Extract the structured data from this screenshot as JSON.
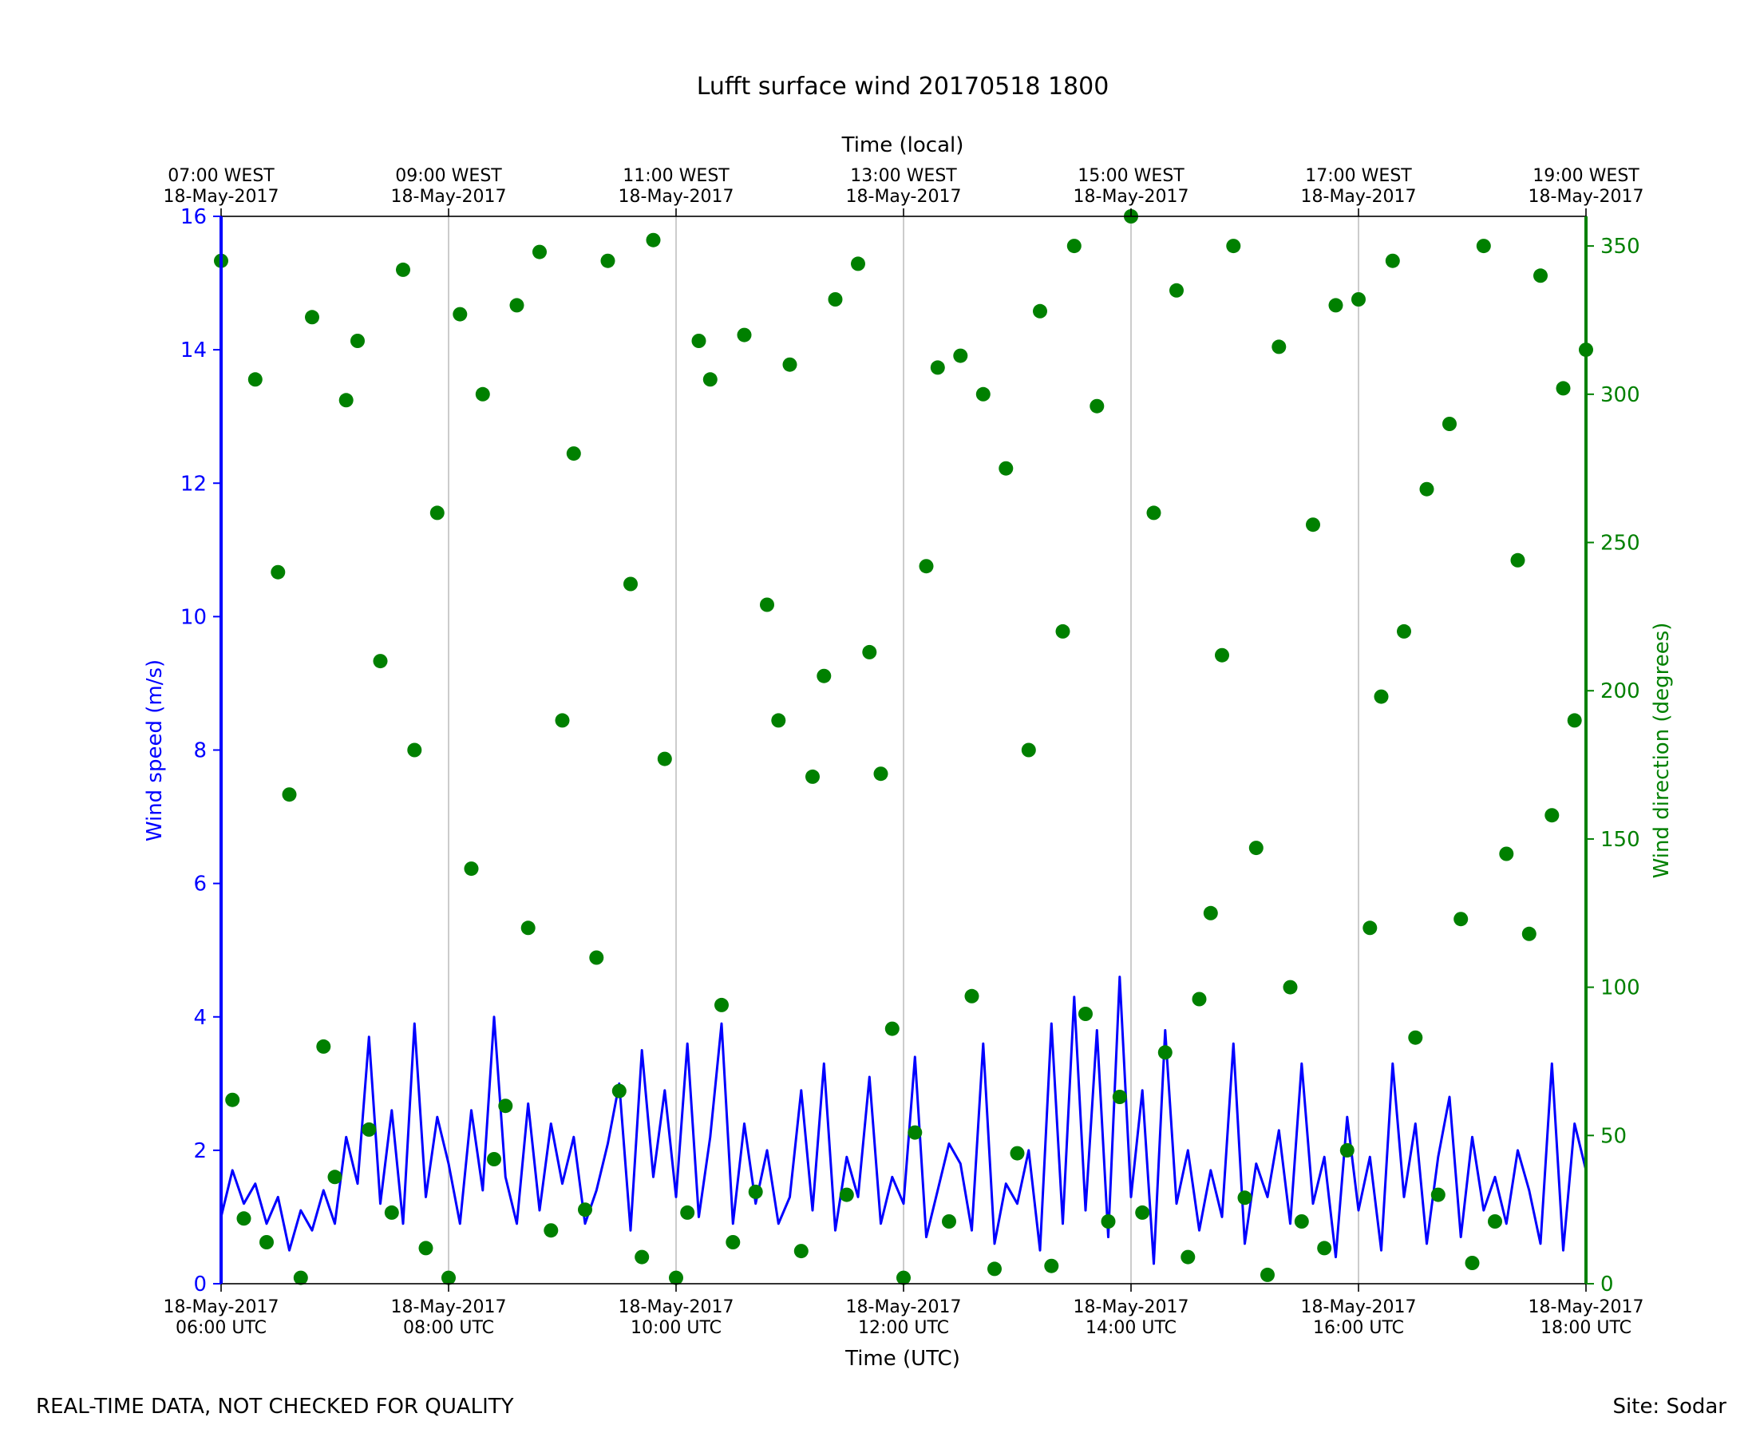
{
  "title": "Lufft surface wind 20170518 1800",
  "footer": {
    "left": "REAL-TIME DATA, NOT CHECKED FOR QUALITY",
    "right": "Site: Sodar"
  },
  "colors": {
    "speed": "#0000ff",
    "direction": "#008000",
    "grid": "#b0b0b0",
    "axis": "#000000"
  },
  "chart_data": {
    "type": "line",
    "x_axis_bottom": {
      "label": "Time (UTC)",
      "ticks": [
        {
          "line1": "18-May-2017",
          "line2": "06:00 UTC"
        },
        {
          "line1": "18-May-2017",
          "line2": "08:00 UTC"
        },
        {
          "line1": "18-May-2017",
          "line2": "10:00 UTC"
        },
        {
          "line1": "18-May-2017",
          "line2": "12:00 UTC"
        },
        {
          "line1": "18-May-2017",
          "line2": "14:00 UTC"
        },
        {
          "line1": "18-May-2017",
          "line2": "16:00 UTC"
        },
        {
          "line1": "18-May-2017",
          "line2": "18:00 UTC"
        }
      ]
    },
    "x_axis_top": {
      "label": "Time (local)",
      "ticks": [
        {
          "line1": "07:00 WEST",
          "line2": "18-May-2017"
        },
        {
          "line1": "09:00 WEST",
          "line2": "18-May-2017"
        },
        {
          "line1": "11:00 WEST",
          "line2": "18-May-2017"
        },
        {
          "line1": "13:00 WEST",
          "line2": "18-May-2017"
        },
        {
          "line1": "15:00 WEST",
          "line2": "18-May-2017"
        },
        {
          "line1": "17:00 WEST",
          "line2": "18-May-2017"
        },
        {
          "line1": "19:00 WEST",
          "line2": "18-May-2017"
        }
      ]
    },
    "x_range_hours_utc": [
      6,
      18
    ],
    "grid": "vertical lines at major time ticks",
    "y_left": {
      "label": "Wind speed (m/s)",
      "ylim": [
        0,
        16
      ],
      "ticks": [
        0,
        2,
        4,
        6,
        8,
        10,
        12,
        14,
        16
      ]
    },
    "y_right": {
      "label": "Wind direction (degrees)",
      "ylim": [
        0,
        360
      ],
      "ticks": [
        0,
        50,
        100,
        150,
        200,
        250,
        300,
        350
      ]
    },
    "series": [
      {
        "name": "Wind speed (m/s)",
        "axis": "left",
        "kind": "line",
        "x_hours_utc": [
          6.0,
          6.1,
          6.2,
          6.3,
          6.4,
          6.5,
          6.6,
          6.7,
          6.8,
          6.9,
          7.0,
          7.1,
          7.2,
          7.3,
          7.4,
          7.5,
          7.6,
          7.7,
          7.8,
          7.9,
          8.0,
          8.1,
          8.2,
          8.3,
          8.4,
          8.5,
          8.6,
          8.7,
          8.8,
          8.9,
          9.0,
          9.1,
          9.2,
          9.3,
          9.4,
          9.5,
          9.6,
          9.7,
          9.8,
          9.9,
          10.0,
          10.1,
          10.2,
          10.3,
          10.4,
          10.5,
          10.6,
          10.7,
          10.8,
          10.9,
          11.0,
          11.1,
          11.2,
          11.3,
          11.4,
          11.5,
          11.6,
          11.7,
          11.8,
          11.9,
          12.0,
          12.1,
          12.2,
          12.3,
          12.4,
          12.5,
          12.6,
          12.7,
          12.8,
          12.9,
          13.0,
          13.1,
          13.2,
          13.3,
          13.4,
          13.5,
          13.6,
          13.7,
          13.8,
          13.9,
          14.0,
          14.1,
          14.2,
          14.3,
          14.4,
          14.5,
          14.6,
          14.7,
          14.8,
          14.9,
          15.0,
          15.1,
          15.2,
          15.3,
          15.4,
          15.5,
          15.6,
          15.7,
          15.8,
          15.9,
          16.0,
          16.1,
          16.2,
          16.3,
          16.4,
          16.5,
          16.6,
          16.7,
          16.8,
          16.9,
          17.0,
          17.1,
          17.2,
          17.3,
          17.4,
          17.5,
          17.6,
          17.7,
          17.8,
          17.9,
          18.0
        ],
        "values": [
          1.0,
          1.7,
          1.2,
          1.5,
          0.9,
          1.3,
          0.5,
          1.1,
          0.8,
          1.4,
          0.9,
          2.2,
          1.5,
          3.7,
          1.2,
          2.6,
          0.9,
          3.9,
          1.3,
          2.5,
          1.8,
          0.9,
          2.6,
          1.4,
          4.0,
          1.6,
          0.9,
          2.7,
          1.1,
          2.4,
          1.5,
          2.2,
          0.9,
          1.4,
          2.1,
          3.0,
          0.8,
          3.5,
          1.6,
          2.9,
          1.3,
          3.6,
          1.0,
          2.2,
          3.9,
          0.9,
          2.4,
          1.2,
          2.0,
          0.9,
          1.3,
          2.9,
          1.1,
          3.3,
          0.8,
          1.9,
          1.3,
          3.1,
          0.9,
          1.6,
          1.2,
          3.4,
          0.7,
          1.4,
          2.1,
          1.8,
          0.8,
          3.6,
          0.6,
          1.5,
          1.2,
          2.0,
          0.5,
          3.9,
          0.9,
          4.3,
          1.1,
          3.8,
          0.7,
          4.6,
          1.3,
          2.9,
          0.3,
          3.8,
          1.2,
          2.0,
          0.8,
          1.7,
          1.0,
          3.6,
          0.6,
          1.8,
          1.3,
          2.3,
          0.9,
          3.3,
          1.2,
          1.9,
          0.4,
          2.5,
          1.1,
          1.9,
          0.5,
          3.3,
          1.3,
          2.4,
          0.6,
          1.9,
          2.8,
          0.7,
          2.2,
          1.1,
          1.6,
          0.9,
          2.0,
          1.4,
          0.6,
          3.3,
          0.5,
          2.4,
          1.7
        ]
      },
      {
        "name": "Wind direction (degrees)",
        "axis": "right",
        "kind": "scatter",
        "x_hours_utc": [
          6.0,
          6.1,
          6.2,
          6.3,
          6.4,
          6.5,
          6.6,
          6.7,
          6.8,
          6.9,
          7.0,
          7.1,
          7.2,
          7.3,
          7.4,
          7.5,
          7.6,
          7.7,
          7.8,
          7.9,
          8.0,
          8.1,
          8.2,
          8.3,
          8.4,
          8.5,
          8.6,
          8.7,
          8.8,
          8.9,
          9.0,
          9.1,
          9.2,
          9.3,
          9.4,
          9.5,
          9.6,
          9.7,
          9.8,
          9.9,
          10.0,
          10.1,
          10.2,
          10.3,
          10.4,
          10.5,
          10.6,
          10.7,
          10.8,
          10.9,
          11.0,
          11.1,
          11.2,
          11.3,
          11.4,
          11.5,
          11.6,
          11.7,
          11.8,
          11.9,
          12.0,
          12.1,
          12.2,
          12.3,
          12.4,
          12.5,
          12.6,
          12.7,
          12.8,
          12.9,
          13.0,
          13.1,
          13.2,
          13.3,
          13.4,
          13.5,
          13.6,
          13.7,
          13.8,
          13.9,
          14.0,
          14.1,
          14.2,
          14.3,
          14.4,
          14.5,
          14.6,
          14.7,
          14.8,
          14.9,
          15.0,
          15.1,
          15.2,
          15.3,
          15.4,
          15.5,
          15.6,
          15.7,
          15.8,
          15.9,
          16.0,
          16.1,
          16.2,
          16.3,
          16.4,
          16.5,
          16.6,
          16.7,
          16.8,
          16.9,
          17.0,
          17.1,
          17.2,
          17.3,
          17.4,
          17.5,
          17.6,
          17.7,
          17.8,
          17.9,
          18.0
        ],
        "values": [
          345,
          62,
          22,
          305,
          14,
          240,
          165,
          2,
          326,
          80,
          36,
          298,
          318,
          52,
          210,
          24,
          342,
          180,
          12,
          260,
          2,
          327,
          140,
          300,
          42,
          60,
          330,
          120,
          348,
          18,
          190,
          280,
          25,
          110,
          345,
          65,
          236,
          9,
          352,
          177,
          2,
          24,
          318,
          305,
          94,
          14,
          320,
          31,
          229,
          190,
          310,
          11,
          171,
          205,
          332,
          30,
          344,
          213,
          172,
          86,
          2,
          51,
          242,
          309,
          21,
          313,
          97,
          300,
          5,
          275,
          44,
          180,
          328,
          6,
          220,
          350,
          91,
          296,
          21,
          63,
          360,
          24,
          260,
          78,
          335,
          9,
          96,
          125,
          212,
          350,
          29,
          147,
          3,
          316,
          100,
          21,
          256,
          12,
          330,
          45,
          332,
          120,
          198,
          345,
          220,
          83,
          268,
          30,
          290,
          123,
          7,
          350,
          21,
          145,
          244,
          118,
          340,
          158,
          302,
          190,
          315
        ]
      }
    ]
  }
}
